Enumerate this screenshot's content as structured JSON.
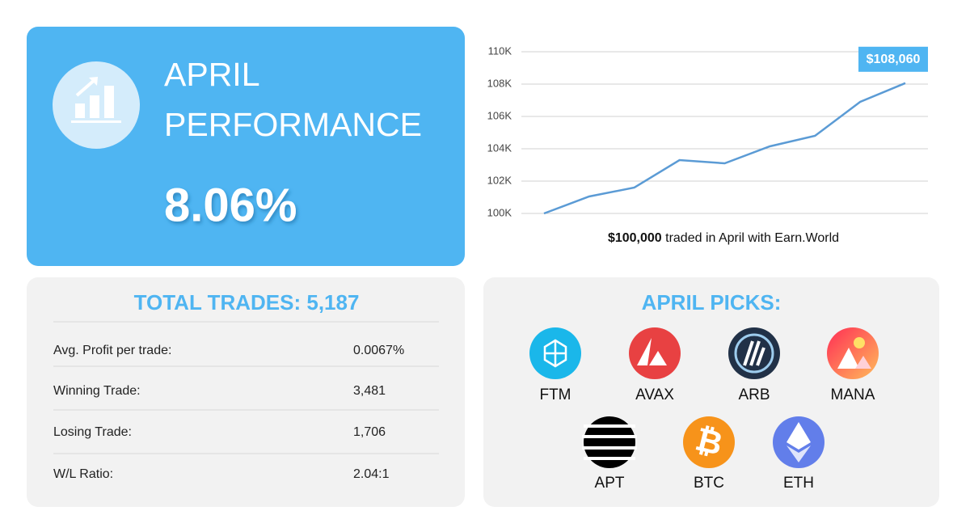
{
  "header": {
    "title_line1": "APRIL",
    "title_line2": "PERFORMANCE",
    "performance": "8.06%"
  },
  "chart_data": {
    "type": "line",
    "values": [
      100000,
      101050,
      101600,
      103300,
      103100,
      104150,
      104800,
      106900,
      108060
    ],
    "value_labels": [
      null,
      null,
      null,
      null,
      null,
      null,
      null,
      null,
      "$108,060"
    ],
    "color": "#5b9bd5",
    "ylim": [
      100000,
      110000
    ],
    "yticks": [
      {
        "value": 100000,
        "label": "100K"
      },
      {
        "value": 102000,
        "label": "102K"
      },
      {
        "value": 104000,
        "label": "104K"
      },
      {
        "value": 106000,
        "label": "106K"
      },
      {
        "value": 108000,
        "label": "108K"
      },
      {
        "value": 110000,
        "label": "110K"
      }
    ],
    "grid": true,
    "caption_bold": "$100,000",
    "caption": "traded in April with Earn.World"
  },
  "stats": {
    "title": "TOTAL TRADES: 5,187",
    "rows": [
      [
        "Avg. Profit per trade:",
        "0.0067%"
      ],
      [
        "Winning Trade:",
        "3,481"
      ],
      [
        "Losing Trade:",
        "1,706"
      ],
      [
        "W/L Ratio:",
        "2.04:1"
      ]
    ]
  },
  "picks": {
    "title": "APRIL PICKS:",
    "coins": [
      "FTM",
      "AVAX",
      "ARB",
      "MANA",
      "APT",
      "BTC",
      "ETH"
    ]
  }
}
